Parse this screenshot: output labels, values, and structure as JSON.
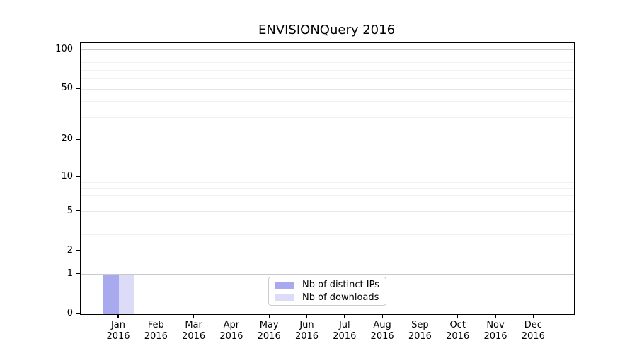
{
  "title": "ENVISIONQuery 2016",
  "colors": {
    "distinct_ips": "#a9a9f0",
    "downloads": "#dcdcf8",
    "grid_strong": "#c9c9c9",
    "grid_light": "#e7e7e7",
    "grid_minor": "#f1f1f1",
    "axis_frame": "#000000",
    "legend_border": "#cccccc"
  },
  "legend": {
    "items": [
      {
        "label": "Nb of distinct IPs"
      },
      {
        "label": "Nb of downloads"
      }
    ]
  },
  "chart_data": {
    "type": "bar",
    "title": "ENVISIONQuery 2016",
    "categories": [
      "Jan 2016",
      "Feb 2016",
      "Mar 2016",
      "Apr 2016",
      "May 2016",
      "Jun 2016",
      "Jul 2016",
      "Aug 2016",
      "Sep 2016",
      "Oct 2016",
      "Nov 2016",
      "Dec 2016"
    ],
    "series": [
      {
        "name": "Nb of distinct IPs",
        "color": "#a9a9f0",
        "values": [
          1,
          0,
          0,
          0,
          0,
          0,
          0,
          0,
          0,
          0,
          0,
          0
        ]
      },
      {
        "name": "Nb of downloads",
        "color": "#dcdcf8",
        "values": [
          1,
          0,
          0,
          0,
          0,
          0,
          0,
          0,
          0,
          0,
          0,
          0
        ]
      }
    ],
    "xlabel": "",
    "ylabel": "",
    "yscale": "log1p",
    "ylim": [
      0,
      113
    ],
    "y_tick_labels": [
      0,
      1,
      2,
      5,
      10,
      20,
      50,
      100
    ],
    "y_grid_strong": [
      1,
      10,
      100
    ],
    "y_grid_light": [
      2,
      5,
      20,
      50
    ],
    "y_grid_minor": [
      3,
      4,
      6,
      7,
      8,
      9,
      30,
      40,
      60,
      70,
      80,
      90
    ],
    "grid": true,
    "legend_position": "lower center"
  }
}
